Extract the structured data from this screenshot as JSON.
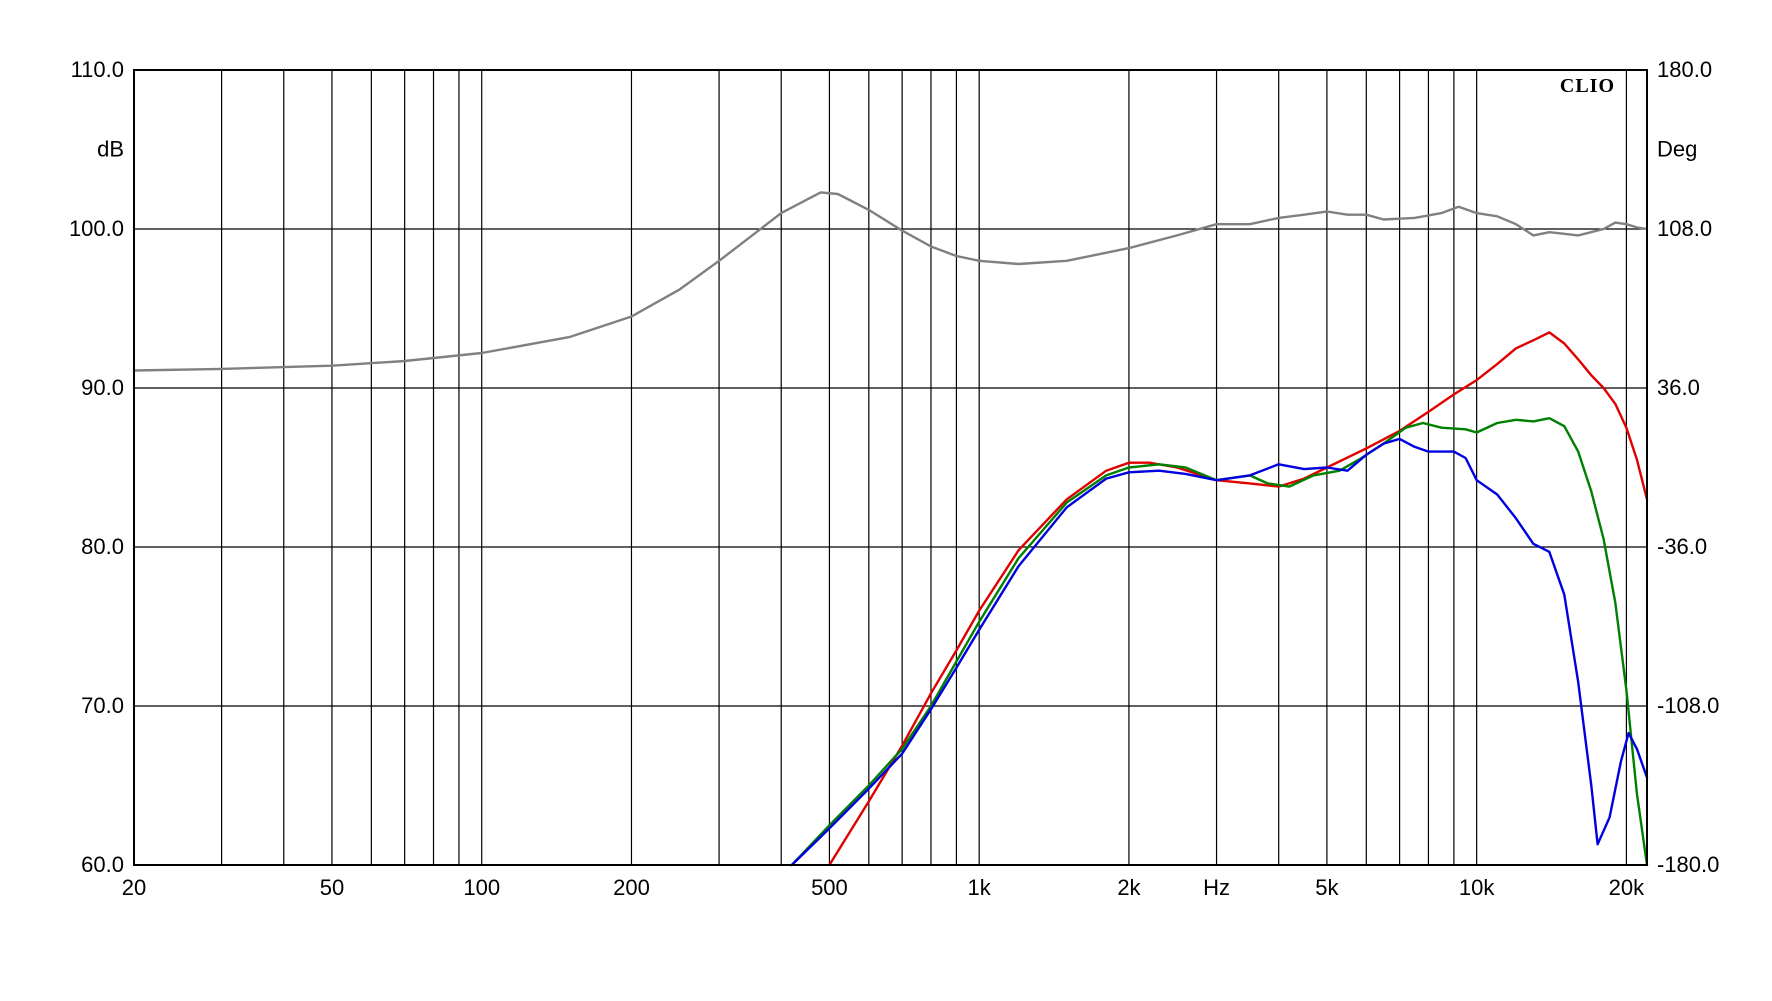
{
  "chart_data": {
    "type": "line",
    "brand": "CLIO",
    "x_scale": "log",
    "xlim": [
      20,
      22000
    ],
    "ylim": [
      60,
      110
    ],
    "y2lim": [
      -180,
      180
    ],
    "grid": true,
    "xlabel": "Hz",
    "ylabel": "dB",
    "y2label": "Deg",
    "x_ticks": [
      {
        "value": 20,
        "label": "20"
      },
      {
        "value": 50,
        "label": "50"
      },
      {
        "value": 100,
        "label": "100"
      },
      {
        "value": 200,
        "label": "200"
      },
      {
        "value": 500,
        "label": "500"
      },
      {
        "value": 1000,
        "label": "1k"
      },
      {
        "value": 2000,
        "label": "2k"
      },
      {
        "value": 5000,
        "label": "5k"
      },
      {
        "value": 10000,
        "label": "10k"
      },
      {
        "value": 20000,
        "label": "20k"
      }
    ],
    "y_ticks": [
      {
        "value": 60,
        "label": "60.0"
      },
      {
        "value": 70,
        "label": "70.0"
      },
      {
        "value": 80,
        "label": "80.0"
      },
      {
        "value": 90,
        "label": "90.0"
      },
      {
        "value": 100,
        "label": "100.0"
      },
      {
        "value": 110,
        "label": "110.0"
      }
    ],
    "y2_ticks": [
      {
        "value": -180,
        "label": "-180.0"
      },
      {
        "value": -108,
        "label": "-108.0"
      },
      {
        "value": -36,
        "label": "-36.0"
      },
      {
        "value": 36,
        "label": "36.0"
      },
      {
        "value": 108,
        "label": "108.0"
      },
      {
        "value": 180,
        "label": "180.0"
      }
    ],
    "series": [
      {
        "id": "gray",
        "color": "#808080",
        "points": [
          [
            20,
            91.1
          ],
          [
            30,
            91.2
          ],
          [
            50,
            91.4
          ],
          [
            70,
            91.7
          ],
          [
            100,
            92.2
          ],
          [
            150,
            93.2
          ],
          [
            200,
            94.5
          ],
          [
            250,
            96.2
          ],
          [
            300,
            98.0
          ],
          [
            400,
            101.0
          ],
          [
            480,
            102.3
          ],
          [
            520,
            102.2
          ],
          [
            600,
            101.2
          ],
          [
            700,
            99.9
          ],
          [
            800,
            98.9
          ],
          [
            900,
            98.3
          ],
          [
            1000,
            98.0
          ],
          [
            1200,
            97.8
          ],
          [
            1500,
            98.0
          ],
          [
            2000,
            98.8
          ],
          [
            2500,
            99.6
          ],
          [
            3000,
            100.3
          ],
          [
            3500,
            100.3
          ],
          [
            4000,
            100.7
          ],
          [
            4500,
            100.9
          ],
          [
            5000,
            101.1
          ],
          [
            5500,
            100.9
          ],
          [
            6000,
            100.9
          ],
          [
            6500,
            100.6
          ],
          [
            7500,
            100.7
          ],
          [
            8500,
            101.0
          ],
          [
            9200,
            101.4
          ],
          [
            10000,
            101.0
          ],
          [
            11000,
            100.8
          ],
          [
            12000,
            100.3
          ],
          [
            13000,
            99.6
          ],
          [
            14000,
            99.8
          ],
          [
            15000,
            99.7
          ],
          [
            16000,
            99.6
          ],
          [
            18000,
            100.0
          ],
          [
            19000,
            100.4
          ],
          [
            20000,
            100.3
          ],
          [
            21000,
            100.1
          ],
          [
            22000,
            100.0
          ]
        ]
      },
      {
        "id": "red",
        "color": "#e00000",
        "points": [
          [
            500,
            60.0
          ],
          [
            600,
            64.0
          ],
          [
            700,
            67.5
          ],
          [
            800,
            70.8
          ],
          [
            900,
            73.5
          ],
          [
            1000,
            76.0
          ],
          [
            1200,
            79.8
          ],
          [
            1500,
            83.0
          ],
          [
            1800,
            84.8
          ],
          [
            2000,
            85.3
          ],
          [
            2200,
            85.3
          ],
          [
            2500,
            85.0
          ],
          [
            3000,
            84.2
          ],
          [
            3500,
            84.0
          ],
          [
            4000,
            83.8
          ],
          [
            4500,
            84.3
          ],
          [
            5000,
            85.0
          ],
          [
            6000,
            86.2
          ],
          [
            7000,
            87.3
          ],
          [
            8000,
            88.5
          ],
          [
            9000,
            89.6
          ],
          [
            10000,
            90.5
          ],
          [
            11000,
            91.5
          ],
          [
            12000,
            92.5
          ],
          [
            13000,
            93.0
          ],
          [
            14000,
            93.5
          ],
          [
            15000,
            92.8
          ],
          [
            16000,
            91.8
          ],
          [
            17000,
            90.8
          ],
          [
            18000,
            90.0
          ],
          [
            19000,
            89.0
          ],
          [
            20000,
            87.5
          ],
          [
            21000,
            85.5
          ],
          [
            22000,
            83.0
          ]
        ]
      },
      {
        "id": "green",
        "color": "#008000",
        "points": [
          [
            420,
            60.0
          ],
          [
            500,
            62.5
          ],
          [
            600,
            65.0
          ],
          [
            700,
            67.3
          ],
          [
            800,
            70.0
          ],
          [
            900,
            72.8
          ],
          [
            1000,
            75.3
          ],
          [
            1200,
            79.3
          ],
          [
            1500,
            82.8
          ],
          [
            1800,
            84.5
          ],
          [
            2000,
            85.0
          ],
          [
            2300,
            85.2
          ],
          [
            2600,
            85.0
          ],
          [
            3000,
            84.2
          ],
          [
            3500,
            84.5
          ],
          [
            3800,
            84.0
          ],
          [
            4200,
            83.8
          ],
          [
            4700,
            84.5
          ],
          [
            5300,
            84.8
          ],
          [
            5800,
            85.5
          ],
          [
            6500,
            86.5
          ],
          [
            7200,
            87.5
          ],
          [
            7800,
            87.8
          ],
          [
            8500,
            87.5
          ],
          [
            9500,
            87.4
          ],
          [
            10000,
            87.2
          ],
          [
            11000,
            87.8
          ],
          [
            12000,
            88.0
          ],
          [
            13000,
            87.9
          ],
          [
            14000,
            88.1
          ],
          [
            15000,
            87.6
          ],
          [
            16000,
            86.0
          ],
          [
            17000,
            83.5
          ],
          [
            18000,
            80.5
          ],
          [
            19000,
            76.5
          ],
          [
            20000,
            71.0
          ],
          [
            21000,
            64.5
          ],
          [
            22000,
            60.0
          ]
        ]
      },
      {
        "id": "blue",
        "color": "#0000e0",
        "points": [
          [
            420,
            60.0
          ],
          [
            500,
            62.3
          ],
          [
            600,
            64.8
          ],
          [
            700,
            67.0
          ],
          [
            800,
            69.8
          ],
          [
            900,
            72.4
          ],
          [
            1000,
            74.8
          ],
          [
            1200,
            78.8
          ],
          [
            1500,
            82.5
          ],
          [
            1800,
            84.3
          ],
          [
            2000,
            84.7
          ],
          [
            2300,
            84.8
          ],
          [
            2600,
            84.6
          ],
          [
            3000,
            84.2
          ],
          [
            3500,
            84.5
          ],
          [
            4000,
            85.2
          ],
          [
            4500,
            84.9
          ],
          [
            5000,
            85.0
          ],
          [
            5500,
            84.8
          ],
          [
            6000,
            85.8
          ],
          [
            6500,
            86.5
          ],
          [
            7000,
            86.8
          ],
          [
            7500,
            86.3
          ],
          [
            8000,
            86.0
          ],
          [
            9000,
            86.0
          ],
          [
            9500,
            85.6
          ],
          [
            10000,
            84.2
          ],
          [
            11000,
            83.3
          ],
          [
            12000,
            81.8
          ],
          [
            13000,
            80.2
          ],
          [
            14000,
            79.7
          ],
          [
            15000,
            77.0
          ],
          [
            16000,
            71.5
          ],
          [
            17000,
            65.0
          ],
          [
            17500,
            61.3
          ],
          [
            18500,
            63.0
          ],
          [
            19500,
            66.5
          ],
          [
            20200,
            68.3
          ],
          [
            21000,
            67.3
          ],
          [
            22000,
            65.5
          ]
        ]
      }
    ]
  }
}
